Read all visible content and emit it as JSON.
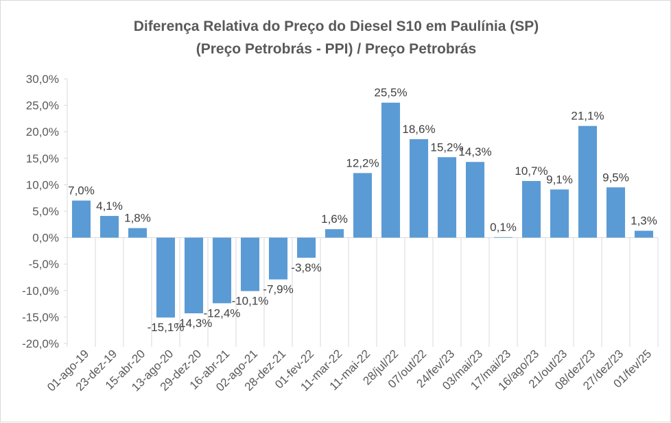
{
  "chart_data": {
    "type": "bar",
    "title": "Diferença Relativa do Preço do Diesel S10 em Paulínia (SP)",
    "subtitle": "(Preço Petrobrás - PPI) / Preço Petrobrás",
    "categories": [
      "01-ago-19",
      "23-dez-19",
      "15-abr-20",
      "13-ago-20",
      "29-dez-20",
      "16-abr-21",
      "02-ago-21",
      "28-dez-21",
      "01-fev-22",
      "11-mar-22",
      "11-mai-22",
      "28/jul/22",
      "07/out/22",
      "24/fev/23",
      "03/mai/23",
      "17/mai/23",
      "16/ago/23",
      "21/out/23",
      "08/dez/23",
      "27/dez/23",
      "01/fev/25"
    ],
    "values": [
      7.0,
      4.1,
      1.8,
      -15.1,
      -14.3,
      -12.4,
      -10.1,
      -7.9,
      -3.8,
      1.6,
      12.2,
      25.5,
      18.6,
      15.2,
      14.3,
      0.1,
      10.7,
      9.1,
      21.1,
      9.5,
      1.3
    ],
    "data_labels": [
      "7,0%",
      "4,1%",
      "1,8%",
      "-15,1%",
      "-14,3%",
      "-12,4%",
      "-10,1%",
      "-7,9%",
      "-3,8%",
      "1,6%",
      "12,2%",
      "25,5%",
      "18,6%",
      "15,2%",
      "14,3%",
      "0,1%",
      "10,7%",
      "9,1%",
      "21,1%",
      "9,5%",
      "1,3%"
    ],
    "yticks": [
      30,
      25,
      20,
      15,
      10,
      5,
      0,
      -5,
      -10,
      -15,
      -20
    ],
    "ytick_labels": [
      "30,0%",
      "25,0%",
      "20,0%",
      "15,0%",
      "10,0%",
      "5,0%",
      "0,0%",
      "-5,0%",
      "-10,0%",
      "-15,0%",
      "-20,0%"
    ],
    "ylim": [
      -20,
      30
    ],
    "xlabel": "",
    "ylabel": "",
    "grid": false,
    "bar_color": "#5b9bd5",
    "axis_color": "#d9d9d9"
  }
}
